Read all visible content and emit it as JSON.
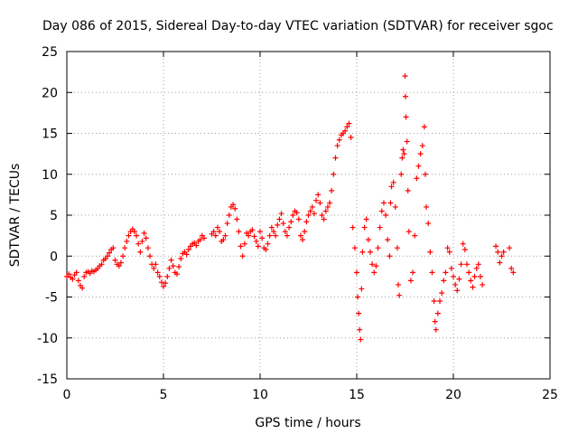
{
  "chart_data": {
    "type": "scatter",
    "title": "Day 086 of 2015, Sidereal Day-to-day VTEC variation (SDTVAR) for receiver sgoc",
    "xlabel": "GPS time / hours",
    "ylabel": "SDTVAR / TECUs",
    "xlim": [
      0,
      25
    ],
    "ylim": [
      -15,
      25
    ],
    "xticks": [
      0,
      5,
      10,
      15,
      20,
      25
    ],
    "yticks": [
      -15,
      -10,
      -5,
      0,
      5,
      10,
      15,
      20,
      25
    ],
    "grid": true,
    "marker": "+",
    "marker_color": "#ff0000",
    "series": [
      {
        "name": "SDTVAR",
        "points": [
          [
            0.0,
            -2.5
          ],
          [
            0.1,
            -2.2
          ],
          [
            0.2,
            -2.6
          ],
          [
            0.3,
            -2.8
          ],
          [
            0.4,
            -2.3
          ],
          [
            0.5,
            -2.0
          ],
          [
            0.6,
            -3.0
          ],
          [
            0.7,
            -3.6
          ],
          [
            0.8,
            -3.9
          ],
          [
            0.9,
            -2.5
          ],
          [
            1.0,
            -2.0
          ],
          [
            1.1,
            -1.9
          ],
          [
            1.2,
            -2.1
          ],
          [
            1.3,
            -1.8
          ],
          [
            1.4,
            -1.9
          ],
          [
            1.5,
            -1.7
          ],
          [
            1.6,
            -1.5
          ],
          [
            1.7,
            -1.2
          ],
          [
            1.8,
            -1.0
          ],
          [
            1.9,
            -0.5
          ],
          [
            2.0,
            -0.3
          ],
          [
            2.1,
            0.0
          ],
          [
            2.2,
            0.4
          ],
          [
            2.3,
            0.8
          ],
          [
            2.4,
            1.0
          ],
          [
            2.5,
            -0.5
          ],
          [
            2.6,
            -1.0
          ],
          [
            2.7,
            -1.2
          ],
          [
            2.8,
            -0.8
          ],
          [
            2.9,
            0.0
          ],
          [
            3.0,
            1.0
          ],
          [
            3.1,
            1.8
          ],
          [
            3.2,
            2.5
          ],
          [
            3.3,
            3.0
          ],
          [
            3.4,
            3.3
          ],
          [
            3.5,
            3.0
          ],
          [
            3.6,
            2.5
          ],
          [
            3.7,
            1.5
          ],
          [
            3.8,
            0.5
          ],
          [
            3.9,
            1.8
          ],
          [
            4.0,
            2.8
          ],
          [
            4.1,
            2.2
          ],
          [
            4.2,
            1.0
          ],
          [
            4.3,
            0.0
          ],
          [
            4.4,
            -1.0
          ],
          [
            4.5,
            -1.5
          ],
          [
            4.6,
            -1.0
          ],
          [
            4.7,
            -2.0
          ],
          [
            4.8,
            -2.5
          ],
          [
            4.9,
            -3.2
          ],
          [
            5.0,
            -3.7
          ],
          [
            5.1,
            -3.3
          ],
          [
            5.2,
            -2.5
          ],
          [
            5.3,
            -1.5
          ],
          [
            5.4,
            -0.5
          ],
          [
            5.5,
            -1.2
          ],
          [
            5.6,
            -2.0
          ],
          [
            5.7,
            -2.2
          ],
          [
            5.8,
            -1.3
          ],
          [
            5.9,
            -0.3
          ],
          [
            6.0,
            0.3
          ],
          [
            6.1,
            0.5
          ],
          [
            6.2,
            0.2
          ],
          [
            6.3,
            0.8
          ],
          [
            6.4,
            1.2
          ],
          [
            6.5,
            1.5
          ],
          [
            6.6,
            1.6
          ],
          [
            6.7,
            1.3
          ],
          [
            6.8,
            1.8
          ],
          [
            6.9,
            2.0
          ],
          [
            7.0,
            2.5
          ],
          [
            7.1,
            2.2
          ],
          [
            7.5,
            2.7
          ],
          [
            7.6,
            3.0
          ],
          [
            7.7,
            2.5
          ],
          [
            7.8,
            3.5
          ],
          [
            7.9,
            3.0
          ],
          [
            8.0,
            1.8
          ],
          [
            8.1,
            2.0
          ],
          [
            8.2,
            2.5
          ],
          [
            8.3,
            4.0
          ],
          [
            8.4,
            5.0
          ],
          [
            8.5,
            6.0
          ],
          [
            8.6,
            6.3
          ],
          [
            8.7,
            5.8
          ],
          [
            8.8,
            4.5
          ],
          [
            8.9,
            3.0
          ],
          [
            9.0,
            1.2
          ],
          [
            9.1,
            0.0
          ],
          [
            9.2,
            1.5
          ],
          [
            9.3,
            2.8
          ],
          [
            9.4,
            2.5
          ],
          [
            9.5,
            3.0
          ],
          [
            9.6,
            3.2
          ],
          [
            9.7,
            2.4
          ],
          [
            9.8,
            1.8
          ],
          [
            9.9,
            1.2
          ],
          [
            10.0,
            3.0
          ],
          [
            10.1,
            2.2
          ],
          [
            10.2,
            1.0
          ],
          [
            10.3,
            0.8
          ],
          [
            10.4,
            1.5
          ],
          [
            10.5,
            2.5
          ],
          [
            10.6,
            3.5
          ],
          [
            10.7,
            3.0
          ],
          [
            10.8,
            2.5
          ],
          [
            10.9,
            3.8
          ],
          [
            11.0,
            4.5
          ],
          [
            11.1,
            5.2
          ],
          [
            11.2,
            4.0
          ],
          [
            11.3,
            3.0
          ],
          [
            11.4,
            2.5
          ],
          [
            11.5,
            3.5
          ],
          [
            11.6,
            4.2
          ],
          [
            11.7,
            5.0
          ],
          [
            11.8,
            5.5
          ],
          [
            11.9,
            5.3
          ],
          [
            12.0,
            4.5
          ],
          [
            12.1,
            2.5
          ],
          [
            12.2,
            2.0
          ],
          [
            12.3,
            3.0
          ],
          [
            12.4,
            4.2
          ],
          [
            12.5,
            5.0
          ],
          [
            12.6,
            5.5
          ],
          [
            12.7,
            6.0
          ],
          [
            12.8,
            5.2
          ],
          [
            12.9,
            6.8
          ],
          [
            13.0,
            7.5
          ],
          [
            13.1,
            6.5
          ],
          [
            13.2,
            5.0
          ],
          [
            13.3,
            4.5
          ],
          [
            13.4,
            5.5
          ],
          [
            13.5,
            6.0
          ],
          [
            13.6,
            6.5
          ],
          [
            13.7,
            8.0
          ],
          [
            13.8,
            10.0
          ],
          [
            13.9,
            12.0
          ],
          [
            14.0,
            13.5
          ],
          [
            14.1,
            14.2
          ],
          [
            14.2,
            14.8
          ],
          [
            14.3,
            15.0
          ],
          [
            14.4,
            15.3
          ],
          [
            14.5,
            15.8
          ],
          [
            14.6,
            16.2
          ],
          [
            14.7,
            14.5
          ],
          [
            14.8,
            3.5
          ],
          [
            14.9,
            1.0
          ],
          [
            15.0,
            -2.0
          ],
          [
            15.05,
            -5.0
          ],
          [
            15.1,
            -7.0
          ],
          [
            15.15,
            -9.0
          ],
          [
            15.2,
            -10.2
          ],
          [
            15.25,
            -4.0
          ],
          [
            15.3,
            0.5
          ],
          [
            15.4,
            3.5
          ],
          [
            15.5,
            4.5
          ],
          [
            15.6,
            2.0
          ],
          [
            15.7,
            0.5
          ],
          [
            15.8,
            -1.0
          ],
          [
            15.9,
            -2.0
          ],
          [
            16.0,
            -1.2
          ],
          [
            16.1,
            1.0
          ],
          [
            16.2,
            3.5
          ],
          [
            16.3,
            5.5
          ],
          [
            16.4,
            6.5
          ],
          [
            16.5,
            5.0
          ],
          [
            16.6,
            2.0
          ],
          [
            16.7,
            0.0
          ],
          [
            16.75,
            6.5
          ],
          [
            16.8,
            8.5
          ],
          [
            16.9,
            9.0
          ],
          [
            17.0,
            6.0
          ],
          [
            17.1,
            1.0
          ],
          [
            17.15,
            -3.5
          ],
          [
            17.2,
            -4.8
          ],
          [
            17.3,
            10.0
          ],
          [
            17.35,
            12.0
          ],
          [
            17.4,
            13.0
          ],
          [
            17.45,
            12.5
          ],
          [
            17.5,
            22.0
          ],
          [
            17.52,
            19.5
          ],
          [
            17.55,
            17.0
          ],
          [
            17.6,
            14.0
          ],
          [
            17.65,
            8.0
          ],
          [
            17.7,
            3.0
          ],
          [
            17.8,
            -3.0
          ],
          [
            17.9,
            -2.0
          ],
          [
            18.0,
            2.5
          ],
          [
            18.1,
            9.5
          ],
          [
            18.2,
            11.0
          ],
          [
            18.3,
            12.5
          ],
          [
            18.4,
            13.5
          ],
          [
            18.5,
            15.8
          ],
          [
            18.55,
            10.0
          ],
          [
            18.6,
            6.0
          ],
          [
            18.7,
            4.0
          ],
          [
            18.8,
            0.5
          ],
          [
            18.9,
            -2.0
          ],
          [
            19.0,
            -5.5
          ],
          [
            19.05,
            -8.0
          ],
          [
            19.1,
            -9.0
          ],
          [
            19.2,
            -7.0
          ],
          [
            19.3,
            -5.5
          ],
          [
            19.4,
            -4.5
          ],
          [
            19.5,
            -3.0
          ],
          [
            19.6,
            -2.0
          ],
          [
            19.7,
            1.0
          ],
          [
            19.8,
            0.5
          ],
          [
            19.9,
            -1.5
          ],
          [
            20.0,
            -2.5
          ],
          [
            20.1,
            -3.5
          ],
          [
            20.2,
            -4.2
          ],
          [
            20.3,
            -2.8
          ],
          [
            20.4,
            -1.0
          ],
          [
            20.5,
            1.5
          ],
          [
            20.6,
            0.8
          ],
          [
            20.7,
            -1.0
          ],
          [
            20.8,
            -2.0
          ],
          [
            20.9,
            -3.0
          ],
          [
            21.0,
            -3.8
          ],
          [
            21.1,
            -2.5
          ],
          [
            21.2,
            -1.5
          ],
          [
            21.3,
            -1.0
          ],
          [
            21.4,
            -2.5
          ],
          [
            21.5,
            -3.5
          ],
          [
            22.2,
            1.2
          ],
          [
            22.3,
            0.5
          ],
          [
            22.4,
            -0.8
          ],
          [
            22.5,
            0.0
          ],
          [
            22.6,
            0.5
          ],
          [
            22.9,
            1.0
          ],
          [
            23.0,
            -1.5
          ],
          [
            23.1,
            -2.0
          ]
        ]
      }
    ]
  }
}
